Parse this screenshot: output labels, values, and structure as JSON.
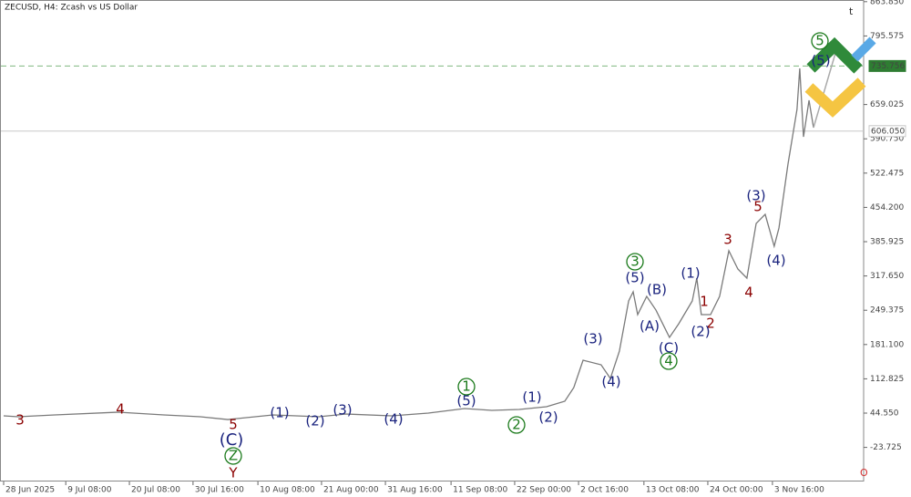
{
  "chart_data": {
    "type": "line",
    "title": "ZECUSD, H4:  Zcash vs US Dollar",
    "color": "#7a7a7a",
    "x": [
      0,
      58,
      204,
      458,
      640,
      785,
      895,
      1076,
      1258,
      1367,
      1549,
      1695,
      1840,
      1949,
      2058,
      2167,
      2240,
      2276,
      2313,
      2385,
      2422,
      2458,
      2495,
      2513,
      2531,
      2567,
      2604,
      2640,
      2658,
      2695,
      2749,
      2767,
      2785,
      2822,
      2858,
      2895,
      2931,
      2967,
      3004,
      3040,
      3076,
      3095,
      3131,
      3167,
      3178,
      3193,
      3215,
      3233
    ],
    "values": [
      39.1,
      37.3,
      40.9,
      46.4,
      40.9,
      37.3,
      31.8,
      40.9,
      37.3,
      42.7,
      39.1,
      44.6,
      53.6,
      50.0,
      51.8,
      57.3,
      68.2,
      95.4,
      149.9,
      140.8,
      113.5,
      168.0,
      267.9,
      286.1,
      240.7,
      277.0,
      249.7,
      213.4,
      195.3,
      222.5,
      267.9,
      313.3,
      240.7,
      240.7,
      277.0,
      367.8,
      331.5,
      313.3,
      422.2,
      440.4,
      376.8,
      413.2,
      540.3,
      649.2,
      731.0,
      594.7,
      667.4,
      612.9
    ],
    "xlim": [
      0,
      3433
    ],
    "ylim": [
      -89.8,
      859.9
    ],
    "xticks": [
      {
        "value": 0,
        "label": "28 Jun 2025"
      },
      {
        "value": 248,
        "label": "9 Jul 08:00"
      },
      {
        "value": 502,
        "label": "20 Jul 08:00"
      },
      {
        "value": 756,
        "label": "30 Jul 16:00"
      },
      {
        "value": 1015,
        "label": "10 Aug 08:00"
      },
      {
        "value": 1269,
        "label": "21 Aug 00:00"
      },
      {
        "value": 1524,
        "label": "31 Aug 16:00"
      },
      {
        "value": 1786,
        "label": "11 Sep 08:00"
      },
      {
        "value": 2040,
        "label": "22 Sep 00:00"
      },
      {
        "value": 2295,
        "label": "2 Oct 16:00"
      },
      {
        "value": 2556,
        "label": "13 Oct 08:00"
      },
      {
        "value": 2811,
        "label": "24 Oct 00:00"
      },
      {
        "value": 3069,
        "label": "3 Nov 16:00"
      }
    ],
    "yticks": [
      {
        "value": 863.85,
        "label": "863.850"
      },
      795.575,
      659.025,
      {
        "value": 590.75,
        "label": "590.750"
      },
      522.475,
      {
        "value": 454.2,
        "label": "454.200"
      },
      385.925,
      {
        "value": 317.65,
        "label": "317.650"
      },
      249.375,
      {
        "value": 181.1,
        "label": "181.100"
      },
      112.825,
      {
        "value": 44.55,
        "label": "44.550"
      },
      -23.725
    ],
    "reference_lines": [
      {
        "value": 735.756,
        "color": "#2e7d32"
      },
      {
        "value": 606.05,
        "label": "606.050",
        "color": "#c8c8c8"
      }
    ],
    "annotations": [
      {
        "text": "3",
        "color": "#8b0000"
      },
      {
        "text": "4",
        "color": "#8b0000"
      },
      {
        "text": "5",
        "color": "#8b0000"
      },
      {
        "text": "(C)",
        "color": "#1a237e"
      },
      {
        "text": "Z",
        "color": "#1b7a1b"
      },
      {
        "text": "Y",
        "color": "#8b0000"
      },
      {
        "text": "(1)",
        "color": "#1a237e"
      },
      {
        "text": "(2)",
        "color": "#1a237e"
      },
      {
        "text": "(3)",
        "color": "#1a237e"
      },
      {
        "text": "(4)",
        "color": "#1a237e"
      },
      {
        "text": "1",
        "color": "#1b7a1b"
      },
      {
        "text": "(5)",
        "color": "#1a237e"
      },
      {
        "text": "2",
        "color": "#1b7a1b"
      },
      {
        "text": "(1)",
        "color": "#1a237e"
      },
      {
        "text": "(2)",
        "color": "#1a237e"
      },
      {
        "text": "(3)",
        "color": "#1a237e"
      },
      {
        "text": "(4)",
        "color": "#1a237e"
      },
      {
        "text": "3",
        "color": "#1b7a1b"
      },
      {
        "text": "(5)",
        "color": "#1a237e"
      },
      {
        "text": "(B)",
        "color": "#1a237e"
      },
      {
        "text": "(A)",
        "color": "#1a237e"
      },
      {
        "text": "(C)",
        "color": "#1a237e"
      },
      {
        "text": "4",
        "color": "#1b7a1b"
      },
      {
        "text": "(1)",
        "color": "#1a237e"
      },
      {
        "text": "1",
        "color": "#8b0000"
      },
      {
        "text": "2",
        "color": "#8b0000"
      },
      {
        "text": "(2)",
        "color": "#1a237e"
      },
      {
        "text": "3",
        "color": "#8b0000"
      },
      {
        "text": "(3)",
        "color": "#1a237e"
      },
      {
        "text": "5",
        "color": "#8b0000"
      },
      {
        "text": "4",
        "color": "#8b0000"
      },
      {
        "text": "(4)",
        "color": "#1a237e"
      },
      {
        "text": "5",
        "color": "#1b7a1b"
      },
      {
        "text": "(5)",
        "color": "#1a237e"
      }
    ]
  }
}
